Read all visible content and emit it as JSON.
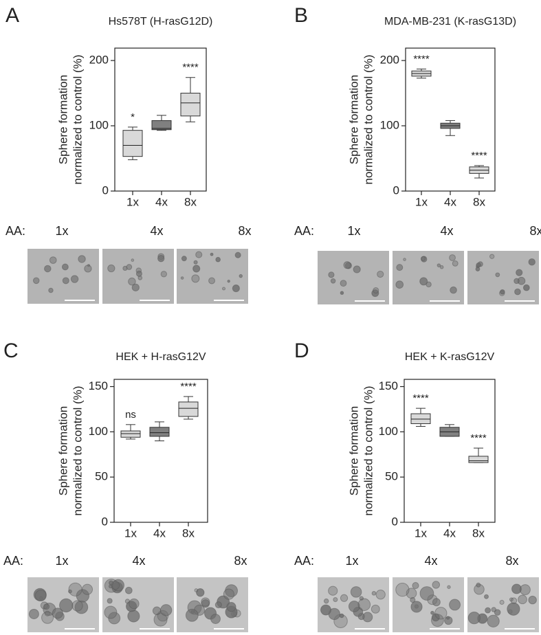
{
  "chart_data": [
    {
      "type": "box",
      "title": "Hs578T (H-rasG12D)",
      "ylabel": [
        "Sphere formation",
        "normalized to control (%)"
      ],
      "categories": [
        "1x",
        "4x",
        "8x"
      ],
      "boxes": [
        {
          "whislo": 48,
          "q1": 53,
          "med": 70,
          "q3": 93,
          "whishi": 98
        },
        {
          "whislo": 93,
          "q1": 94,
          "med": 96,
          "q3": 108,
          "whishi": 116
        },
        {
          "whislo": 106,
          "q1": 115,
          "med": 135,
          "q3": 150,
          "whishi": 174
        }
      ],
      "colors": [
        "#d9d9d9",
        "#808080",
        "#d9d9d9"
      ],
      "annotations": [
        "*",
        null,
        "****"
      ],
      "ylim": [
        0,
        219
      ],
      "yticks": [
        0,
        100,
        200
      ]
    },
    {
      "type": "box",
      "title": "MDA-MB-231 (K-rasG13D)",
      "ylabel": [
        "Sphere formation",
        "normalized to control (%)"
      ],
      "categories": [
        "1x",
        "4x",
        "8x"
      ],
      "boxes": [
        {
          "whislo": 173,
          "q1": 176,
          "med": 180,
          "q3": 184,
          "whishi": 187
        },
        {
          "whislo": 85,
          "q1": 96,
          "med": 100,
          "q3": 104,
          "whishi": 108
        },
        {
          "whislo": 20,
          "q1": 27,
          "med": 32,
          "q3": 37,
          "whishi": 39
        }
      ],
      "colors": [
        "#d9d9d9",
        "#808080",
        "#d9d9d9"
      ],
      "annotations": [
        "****",
        null,
        "****"
      ],
      "ylim": [
        0,
        219
      ],
      "yticks": [
        0,
        100,
        200
      ]
    },
    {
      "type": "box",
      "title": "HEK + H-rasG12V",
      "ylabel": [
        "Sphere formation",
        "normalized to control (%)"
      ],
      "categories": [
        "1x",
        "4x",
        "8x"
      ],
      "boxes": [
        {
          "whislo": 92,
          "q1": 94,
          "med": 98,
          "q3": 101,
          "whishi": 108
        },
        {
          "whislo": 90,
          "q1": 95,
          "med": 99,
          "q3": 105,
          "whishi": 111
        },
        {
          "whislo": 114,
          "q1": 117,
          "med": 126,
          "q3": 133,
          "whishi": 139
        }
      ],
      "colors": [
        "#d9d9d9",
        "#808080",
        "#d9d9d9"
      ],
      "annotations": [
        "ns",
        null,
        "****"
      ],
      "ylim": [
        0,
        158
      ],
      "yticks": [
        0,
        50,
        100,
        150
      ]
    },
    {
      "type": "box",
      "title": "HEK + K-rasG12V",
      "ylabel": [
        "Sphere formation",
        "normalized to control (%)"
      ],
      "categories": [
        "1x",
        "4x",
        "8x"
      ],
      "boxes": [
        {
          "whislo": 106,
          "q1": 109,
          "med": 114,
          "q3": 120,
          "whishi": 126
        },
        {
          "whislo": 95,
          "q1": 95,
          "med": 100,
          "q3": 105,
          "whishi": 108
        },
        {
          "whislo": 66,
          "q1": 66,
          "med": 68,
          "q3": 73,
          "whishi": 82
        }
      ],
      "colors": [
        "#d9d9d9",
        "#808080",
        "#d9d9d9"
      ],
      "annotations": [
        "****",
        null,
        "****"
      ],
      "ylim": [
        0,
        158
      ],
      "yticks": [
        0,
        50,
        100,
        150
      ]
    }
  ],
  "panels": [
    {
      "letter": "A",
      "aa_label": "AA:",
      "image_labels": [
        "1x",
        "4x",
        "8x"
      ]
    },
    {
      "letter": "B",
      "aa_label": "AA:",
      "image_labels": [
        "1x",
        "4x",
        "8x"
      ]
    },
    {
      "letter": "C",
      "aa_label": "AA:",
      "image_labels": [
        "1x",
        "4x",
        "8x"
      ]
    },
    {
      "letter": "D",
      "aa_label": "AA:",
      "image_labels": [
        "1x",
        "4x",
        "8x"
      ]
    }
  ]
}
